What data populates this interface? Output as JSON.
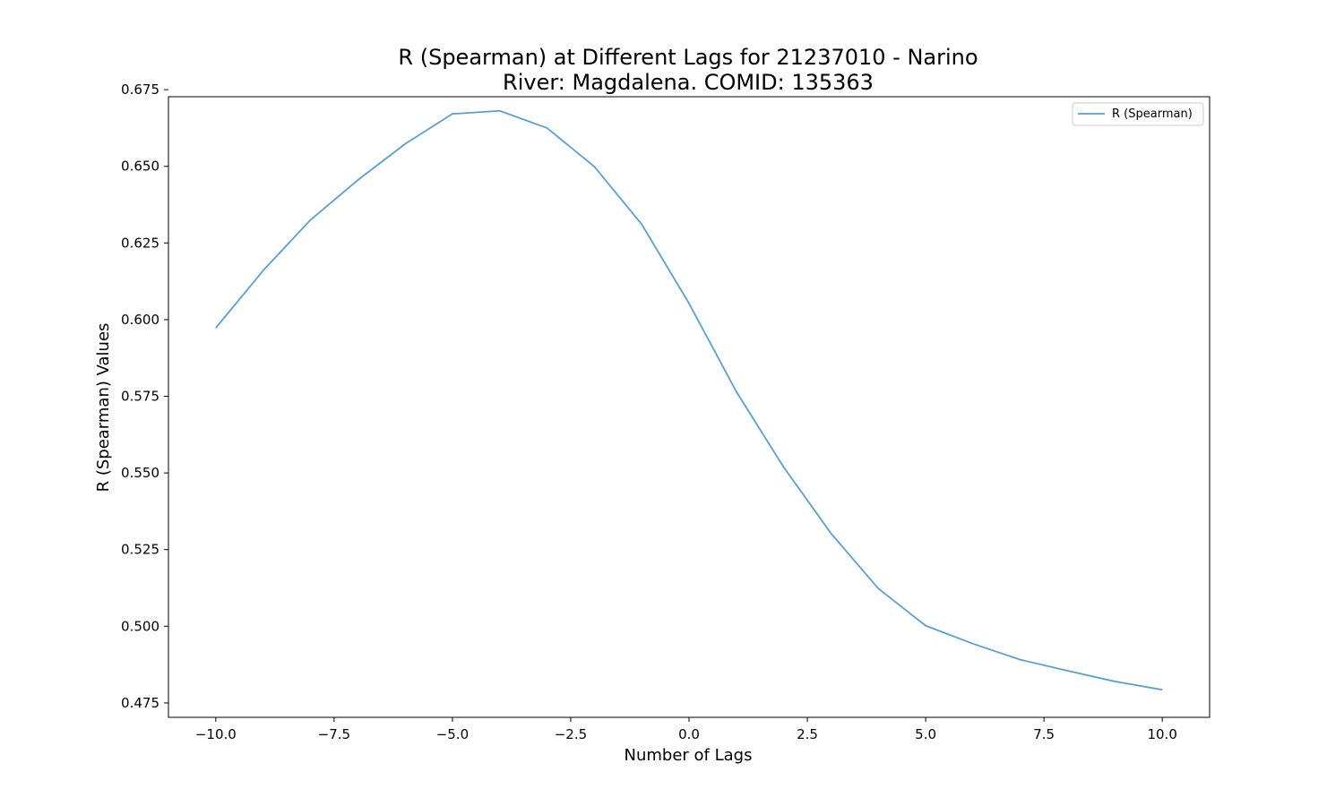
{
  "chart_data": {
    "type": "line",
    "title_line1": "R (Spearman) at Different Lags for 21237010 - Narino",
    "title_line2": "River: Magdalena. COMID: 135363",
    "xlabel": "Number of Lags",
    "ylabel": "R (Spearman) Values",
    "xlim": [
      -11,
      11
    ],
    "ylim": [
      0.4703,
      0.6727
    ],
    "x_ticks": [
      -10.0,
      -7.5,
      -5.0,
      -2.5,
      0.0,
      2.5,
      5.0,
      7.5,
      10.0
    ],
    "x_tick_labels": [
      "−10.0",
      "−7.5",
      "−5.0",
      "−2.5",
      "0.0",
      "2.5",
      "5.0",
      "7.5",
      "10.0"
    ],
    "y_ticks": [
      0.475,
      0.5,
      0.525,
      0.55,
      0.575,
      0.6,
      0.625,
      0.65,
      0.675
    ],
    "y_tick_labels": [
      "0.475",
      "0.500",
      "0.525",
      "0.550",
      "0.575",
      "0.600",
      "0.625",
      "0.650",
      "0.675"
    ],
    "grid": false,
    "legend_position": "top-right",
    "series": [
      {
        "name": "R (Spearman)",
        "color": "#5a9fd0",
        "x": [
          -10,
          -9,
          -8,
          -7,
          -6,
          -5,
          -4,
          -3,
          -2,
          -1,
          0,
          1,
          2,
          3,
          4,
          5,
          6,
          7,
          8,
          9,
          10
        ],
        "values": [
          0.5973,
          0.616,
          0.6325,
          0.6455,
          0.6573,
          0.6671,
          0.6681,
          0.6625,
          0.6499,
          0.6311,
          0.6053,
          0.5765,
          0.5519,
          0.5303,
          0.5123,
          0.5002,
          0.4943,
          0.4891,
          0.4855,
          0.482,
          0.4793
        ]
      }
    ]
  }
}
